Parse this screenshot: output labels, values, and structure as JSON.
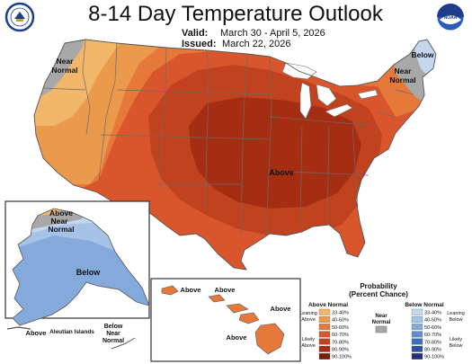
{
  "header": {
    "title": "8-14 Day Temperature Outlook",
    "valid_label": "Valid:",
    "valid_value": "March 30 - April 5, 2026",
    "issued_label": "Issued:",
    "issued_value": "March 22, 2026"
  },
  "colors": {
    "above_33_40": "#f2b66a",
    "above_40_50": "#eb9a4c",
    "above_50_60": "#e6783a",
    "above_60_70": "#d9562c",
    "above_70_80": "#c1421f",
    "above_80_90": "#a52e12",
    "above_90_100": "#7a1e08",
    "near_normal": "#a8a8a8",
    "below_33_40": "#c5d7ee",
    "below_40_50": "#a6c2e6",
    "below_50_60": "#84aadc",
    "below_60_70": "#5f8fcf",
    "below_70_80": "#3d6fbf",
    "below_80_90": "#2d4fa3",
    "below_90_100": "#1f2e78"
  },
  "map_labels": {
    "conus_near_normal_west": "Near Normal",
    "conus_below_northeast": "Below",
    "conus_near_normal_east": "Near Normal",
    "conus_above_center": "Above",
    "alaska_above_near_normal": "Above Near Normal",
    "alaska_below": "Below",
    "alaska_above_aleutians": "Above",
    "aleutian_islands": "Aleutian Islands",
    "alaska_below_near_normal": "Below Near Normal",
    "hawaii_above_1": "Above",
    "hawaii_above_2": "Above",
    "hawaii_above_3": "Above",
    "hawaii_above_4": "Above"
  },
  "legend": {
    "title": "Probability",
    "subtitle": "(Percent Chance)",
    "above_header": "Above Normal",
    "below_header": "Below Normal",
    "near_header": "Near Normal",
    "leaning_above": "Leaning Above",
    "likely_above": "Likely Above",
    "leaning_below": "Leaning Below",
    "likely_below": "Likely Below",
    "ranges": [
      "33-40%",
      "40-50%",
      "50-60%",
      "60-70%",
      "70-80%",
      "80-90%",
      "90-100%"
    ]
  },
  "logos": {
    "left": "doc-seal",
    "right": "noaa-logo",
    "right_text": "NOAA"
  }
}
